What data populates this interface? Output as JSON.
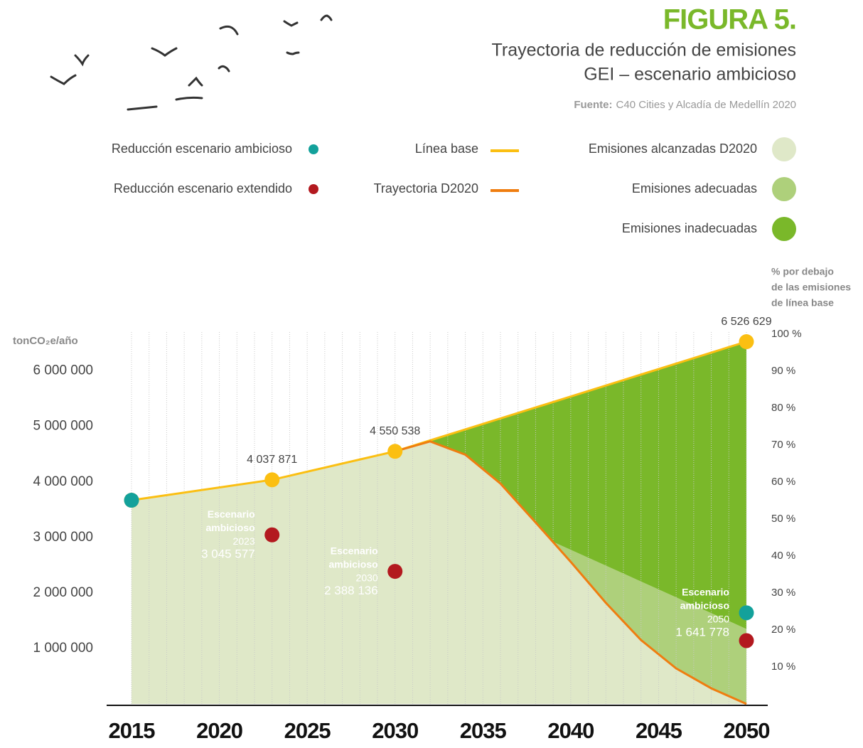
{
  "chart_data": {
    "type": "line",
    "title": "FIGURA 5.",
    "subtitle": [
      "Trayectoria de reducción de emisiones",
      "GEI – escenario ambicioso"
    ],
    "source_label": "Fuente:",
    "source": "C40 Cities y Alcadía de Medellín 2020",
    "ylabel": "tonCO₂e/año",
    "y2label": [
      "% por debajo",
      "de las emisiones",
      "de línea base"
    ],
    "xlim": [
      2015,
      2050
    ],
    "xticks": [
      2015,
      2020,
      2025,
      2030,
      2035,
      2040,
      2045,
      2050
    ],
    "ylim": [
      0,
      6700000
    ],
    "yticks": [
      {
        "value": 1000000,
        "label": "1 000 000"
      },
      {
        "value": 2000000,
        "label": "2 000 000"
      },
      {
        "value": 3000000,
        "label": "3 000 000"
      },
      {
        "value": 4000000,
        "label": "4 000 000"
      },
      {
        "value": 5000000,
        "label": "5 000 000"
      },
      {
        "value": 6000000,
        "label": "6 000 000"
      }
    ],
    "y2lim": [
      0,
      100
    ],
    "y2ticks": [
      {
        "value": 10,
        "label": "10 %"
      },
      {
        "value": 20,
        "label": "20 %"
      },
      {
        "value": 30,
        "label": "30 %"
      },
      {
        "value": 40,
        "label": "40 %"
      },
      {
        "value": 50,
        "label": "50 %"
      },
      {
        "value": 60,
        "label": "60 %"
      },
      {
        "value": 70,
        "label": "70 %"
      },
      {
        "value": 80,
        "label": "80 %"
      },
      {
        "value": 90,
        "label": "90 %"
      },
      {
        "value": 100,
        "label": "100 %"
      }
    ],
    "grid": true,
    "series": [
      {
        "name": "Línea base",
        "color": "#fbbf12",
        "style": "line",
        "x": [
          2015,
          2023,
          2030,
          2050
        ],
        "values": [
          3670000,
          4037871,
          4550538,
          6526629
        ],
        "value_labels": [
          null,
          "4 037 871",
          "4 550 538",
          "6 526 629"
        ]
      },
      {
        "name": "Trayectoria D2020",
        "color": "#ef7d10",
        "style": "line",
        "x": [
          2030,
          2032,
          2034,
          2036,
          2038,
          2040,
          2042,
          2044,
          2046,
          2048,
          2050
        ],
        "values": [
          4550538,
          4730000,
          4490000,
          3970000,
          3270000,
          2560000,
          1820000,
          1150000,
          640000,
          280000,
          0
        ]
      },
      {
        "name": "Reducción escenario ambicioso",
        "color": "#13a19b",
        "style": "points",
        "x": [
          2015,
          2050
        ],
        "values": [
          3670000,
          1641778
        ],
        "value_labels": [
          null,
          "1 641 778"
        ],
        "point_titles": [
          null,
          [
            "Escenario",
            "ambicioso"
          ]
        ],
        "point_years": [
          null,
          "2050"
        ]
      },
      {
        "name": "Reducción escenario extendido",
        "color": "#b3191f",
        "style": "points",
        "x": [
          2023,
          2030,
          2050
        ],
        "values": [
          3045577,
          2388136,
          1140000
        ],
        "value_labels": [
          "3 045 577",
          "2 388 136",
          null
        ],
        "point_titles": [
          [
            "Escenario",
            "ambicioso"
          ],
          [
            "Escenario",
            "ambicioso"
          ],
          null
        ],
        "point_years": [
          "2023",
          "2030",
          null
        ]
      }
    ],
    "areas": [
      {
        "name": "Emisiones alcanzadas D2020",
        "color": "#dfe8c8"
      },
      {
        "name": "Emisiones adecuadas",
        "color": "#aed07b"
      },
      {
        "name": "Emisiones inadecuadas",
        "color": "#7ab82a"
      }
    ],
    "adequate_limit": {
      "x": [
        2039,
        2050
      ],
      "values": [
        2920000,
        1350000
      ]
    }
  }
}
